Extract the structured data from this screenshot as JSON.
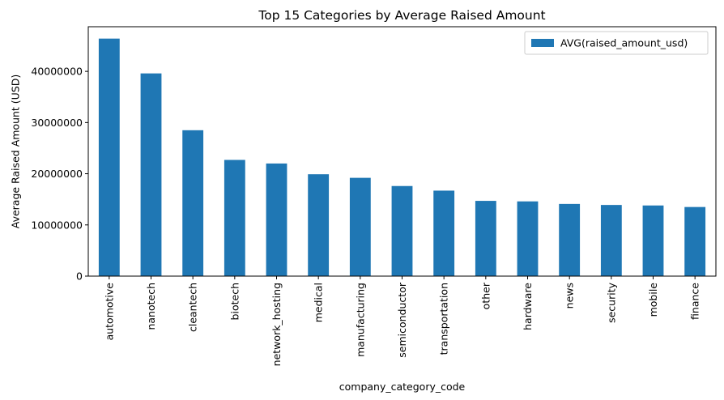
{
  "chart_data": {
    "type": "bar",
    "title": "Top 15 Categories by Average Raised Amount",
    "xlabel": "company_category_code",
    "ylabel": "Average Raised Amount (USD)",
    "categories": [
      "automotive",
      "nanotech",
      "cleantech",
      "biotech",
      "network_hosting",
      "medical",
      "manufacturing",
      "semiconductor",
      "transportation",
      "other",
      "hardware",
      "news",
      "security",
      "mobile",
      "finance"
    ],
    "series": [
      {
        "name": "AVG(raised_amount_usd)",
        "color": "#1f77b4",
        "values": [
          46400000,
          39600000,
          28500000,
          22700000,
          22000000,
          19900000,
          19200000,
          17600000,
          16700000,
          14700000,
          14600000,
          14100000,
          13900000,
          13800000,
          13500000
        ]
      }
    ],
    "ylim": [
      0,
      48720000
    ],
    "yticks": [
      0,
      10000000,
      20000000,
      30000000,
      40000000
    ],
    "ytick_labels": [
      "0",
      "10000000",
      "20000000",
      "30000000",
      "40000000"
    ],
    "legend": {
      "position": "top-right",
      "label": "AVG(raised_amount_usd)"
    },
    "grid": false
  }
}
